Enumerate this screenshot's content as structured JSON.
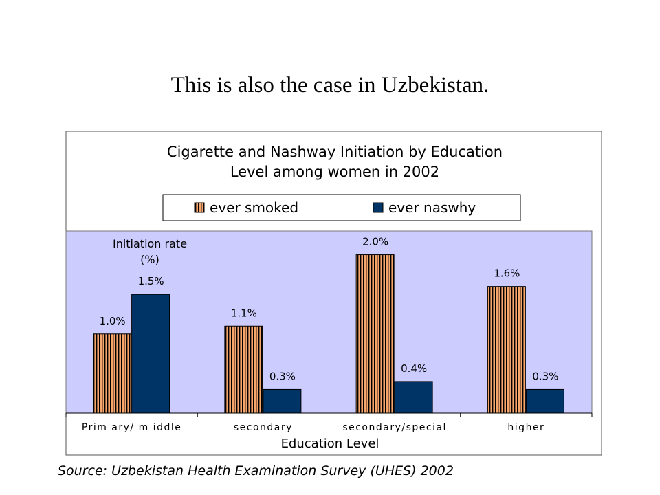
{
  "slide": {
    "title": "This is also the case in Uzbekistan.",
    "source": "Source: Uzbekistan Health Examination Survey (UHES) 2002"
  },
  "chart_data": {
    "type": "bar",
    "title": "Cigarette and Nashway Initiation by Education Level among women in 2002",
    "title_lines": [
      "Cigarette and Nashway Initiation by Education",
      "Level among women in 2002"
    ],
    "xlabel": "Education Level",
    "ylabel_lines": [
      "Initiation rate",
      "(%)"
    ],
    "categories": [
      "Prim ary/ m iddle",
      "secondary",
      "secondary/special",
      "higher"
    ],
    "series": [
      {
        "name": "ever smoked",
        "values": [
          1.0,
          1.1,
          2.0,
          1.6
        ],
        "labels": [
          "1.0%",
          "1.1%",
          "2.0%",
          "1.6%"
        ]
      },
      {
        "name": "ever naswhy",
        "values": [
          1.5,
          0.3,
          0.4,
          0.3
        ],
        "labels": [
          "1.5%",
          "0.3%",
          "0.4%",
          "0.3%"
        ]
      }
    ],
    "ylim": [
      0,
      2.3
    ],
    "legend": "top",
    "grid": false,
    "colors": {
      "plot_background": "#CCCCFF",
      "ever_smoked_fill": "#F7A66B",
      "ever_smoked_stripe": "#000000",
      "ever_naswhy_fill": "#003366"
    }
  }
}
